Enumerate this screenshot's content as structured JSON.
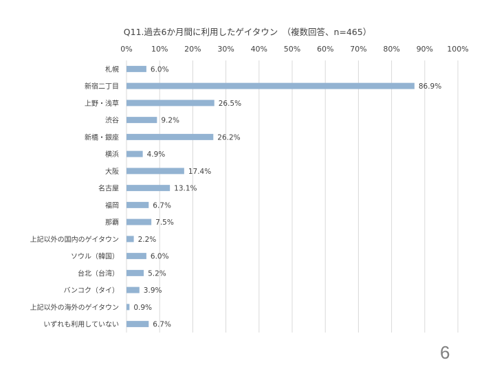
{
  "slide": {
    "page_number": "6"
  },
  "chart_data": {
    "type": "bar",
    "orientation": "horizontal",
    "title": "Q11.過去6か月間に利用したゲイタウン　（複数回答、n=465）",
    "categories": [
      "札幌",
      "新宿二丁目",
      "上野・浅草",
      "渋谷",
      "新橋・銀座",
      "横浜",
      "大阪",
      "名古屋",
      "福岡",
      "那覇",
      "上記以外の国内のゲイタウン",
      "ソウル（韓国）",
      "台北（台湾）",
      "バンコク（タイ）",
      "上記以外の海外のゲイタウン",
      "いずれも利用していない"
    ],
    "values": [
      6.0,
      86.9,
      26.5,
      9.2,
      26.2,
      4.9,
      17.4,
      13.1,
      6.7,
      7.5,
      2.2,
      6.0,
      5.2,
      3.9,
      0.9,
      6.7
    ],
    "value_labels": [
      "6.0%",
      "86.9%",
      "26.5%",
      "9.2%",
      "26.2%",
      "4.9%",
      "17.4%",
      "13.1%",
      "6.7%",
      "7.5%",
      "2.2%",
      "6.0%",
      "5.2%",
      "3.9%",
      "0.9%",
      "6.7%"
    ],
    "xlim": [
      0,
      100
    ],
    "x_ticks": [
      0,
      10,
      20,
      30,
      40,
      50,
      60,
      70,
      80,
      90,
      100
    ],
    "x_tick_labels": [
      "0%",
      "10%",
      "20%",
      "30%",
      "40%",
      "50%",
      "60%",
      "70%",
      "80%",
      "90%",
      "100%"
    ],
    "x_axis_position": "top",
    "grid": true,
    "legend": "none",
    "bar_color": "#93b3d2",
    "grid_color": "#d9d9d9",
    "text_color": "#404040"
  }
}
